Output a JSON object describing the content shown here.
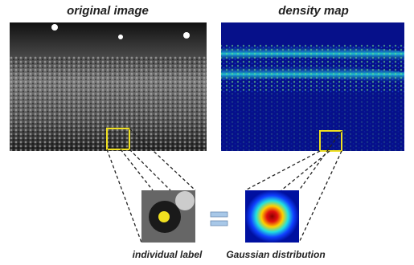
{
  "titles": {
    "original": "original image",
    "density": "density map"
  },
  "labels": {
    "individual": "individual label",
    "gaussian": "Gaussian distribution"
  }
}
